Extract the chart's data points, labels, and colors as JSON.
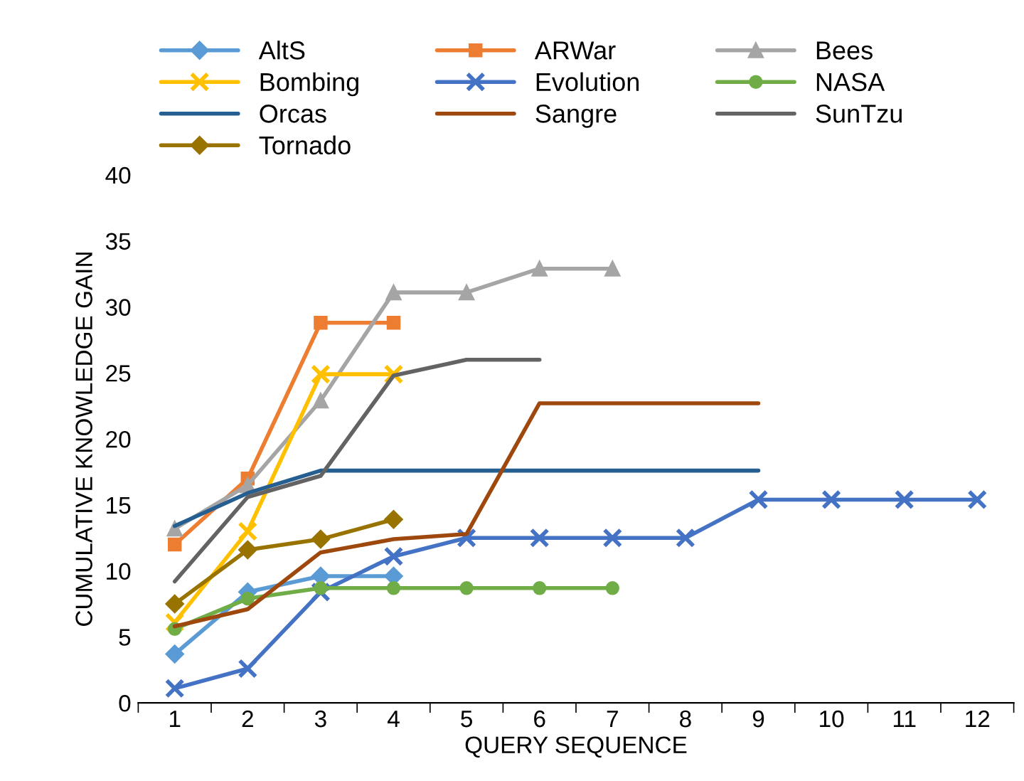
{
  "chart_data": {
    "type": "line",
    "xlabel": "QUERY SEQUENCE",
    "ylabel": "CUMULATIVE KNOWLEDGE GAIN",
    "categories": [
      "1",
      "2",
      "3",
      "4",
      "5",
      "6",
      "7",
      "8",
      "9",
      "10",
      "11",
      "12"
    ],
    "ylim": [
      0,
      40
    ],
    "yticks": [
      0,
      5,
      10,
      15,
      20,
      25,
      30,
      35,
      40
    ],
    "grid": false,
    "legend": "top",
    "line_style": "solid",
    "series": [
      {
        "name": "AltS",
        "color": "#5b9bd5",
        "marker": "diamond",
        "values": [
          3.7,
          8.4,
          9.6,
          9.6,
          null,
          null,
          null,
          null,
          null,
          null,
          null,
          null
        ]
      },
      {
        "name": "ARWar",
        "color": "#ed7d31",
        "marker": "square",
        "values": [
          12,
          17,
          28.8,
          28.8,
          null,
          null,
          null,
          null,
          null,
          null,
          null,
          null
        ]
      },
      {
        "name": "Bees",
        "color": "#a5a5a5",
        "marker": "triangle",
        "values": [
          13.2,
          16.5,
          22.9,
          31.1,
          31.1,
          32.9,
          32.9,
          null,
          null,
          null,
          null,
          null
        ]
      },
      {
        "name": "Bombing",
        "color": "#ffc000",
        "marker": "cross",
        "values": [
          6.1,
          13,
          24.9,
          24.9,
          null,
          null,
          null,
          null,
          null,
          null,
          null,
          null
        ]
      },
      {
        "name": "Evolution",
        "color": "#4472c4",
        "marker": "cross",
        "values": [
          1.1,
          2.6,
          8.4,
          11.1,
          12.5,
          12.5,
          12.5,
          12.5,
          15.4,
          15.4,
          15.4,
          15.4
        ]
      },
      {
        "name": "NASA",
        "color": "#70ad47",
        "marker": "circle",
        "values": [
          5.6,
          7.9,
          8.7,
          8.7,
          8.7,
          8.7,
          8.7,
          null,
          null,
          null,
          null,
          null
        ]
      },
      {
        "name": "Orcas",
        "color": "#255e91",
        "marker": "none",
        "values": [
          13.4,
          15.9,
          17.6,
          17.6,
          17.6,
          17.6,
          17.6,
          17.6,
          17.6,
          null,
          null,
          null
        ]
      },
      {
        "name": "Sangre",
        "color": "#9e480e",
        "marker": "none",
        "values": [
          5.8,
          7.1,
          11.4,
          12.4,
          12.8,
          22.7,
          22.7,
          22.7,
          22.7,
          null,
          null,
          null
        ]
      },
      {
        "name": "SunTzu",
        "color": "#636363",
        "marker": "none",
        "values": [
          9.2,
          15.6,
          17.2,
          24.8,
          26.0,
          26.0,
          null,
          null,
          null,
          null,
          null,
          null
        ]
      },
      {
        "name": "Tornado",
        "color": "#997300",
        "marker": "diamond",
        "values": [
          7.5,
          11.6,
          12.4,
          13.9,
          null,
          null,
          null,
          null,
          null,
          null,
          null,
          null
        ]
      }
    ]
  }
}
